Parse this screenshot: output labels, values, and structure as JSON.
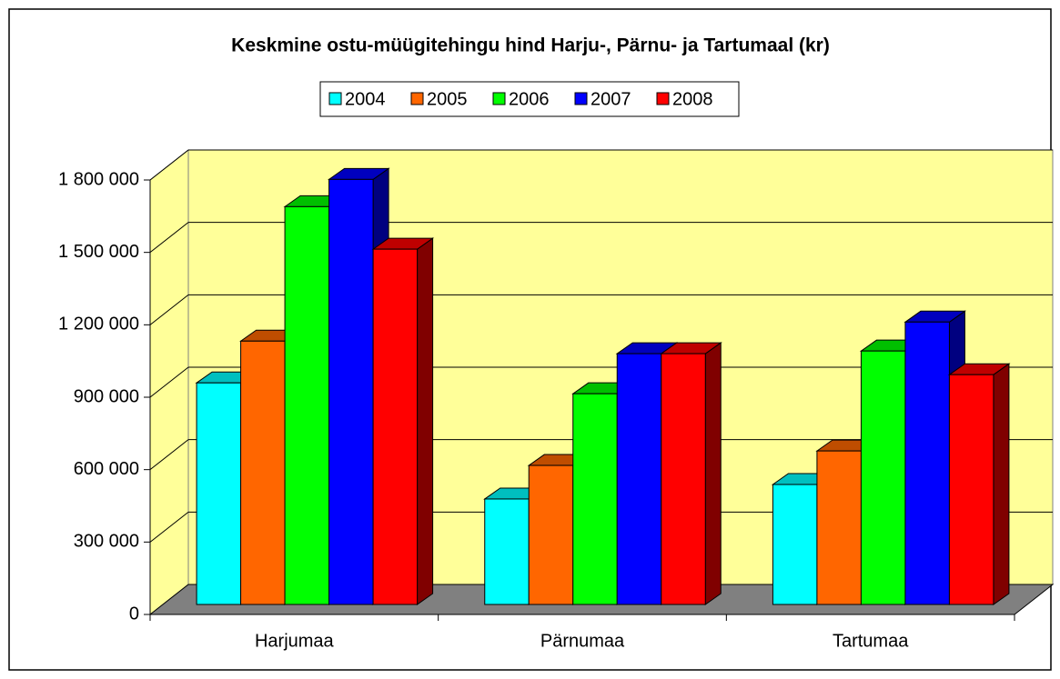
{
  "chart_data": {
    "type": "bar3d",
    "title": "Keskmine ostu-müügitehingu hind Harju-, Pärnu- ja Tartumaal (kr)",
    "categories": [
      "Harjumaa",
      "Pärnumaa",
      "Tartumaa"
    ],
    "series": [
      {
        "name": "2004",
        "color": "#00ffff",
        "values": [
          918000,
          437000,
          497000
        ]
      },
      {
        "name": "2005",
        "color": "#ff6600",
        "values": [
          1091000,
          576000,
          636000
        ]
      },
      {
        "name": "2006",
        "color": "#00ff00",
        "values": [
          1648000,
          873000,
          1050000
        ]
      },
      {
        "name": "2007",
        "color": "#0000ff",
        "values": [
          1761000,
          1039000,
          1170000
        ]
      },
      {
        "name": "2008",
        "color": "#ff0000",
        "values": [
          1472000,
          1039000,
          952000
        ]
      }
    ],
    "ylim": [
      0,
      1800000
    ],
    "yticks": [
      0,
      {
        "value": 300000,
        "label": "300 000"
      },
      {
        "value": 600000,
        "label": "600 000"
      },
      {
        "value": 900000,
        "label": "900 000"
      },
      {
        "value": 1200000,
        "label": "1 200 000"
      },
      {
        "value": 1500000,
        "label": "1 500 000"
      },
      {
        "value": 1800000,
        "label": "1 800 000"
      }
    ],
    "grid": true
  }
}
